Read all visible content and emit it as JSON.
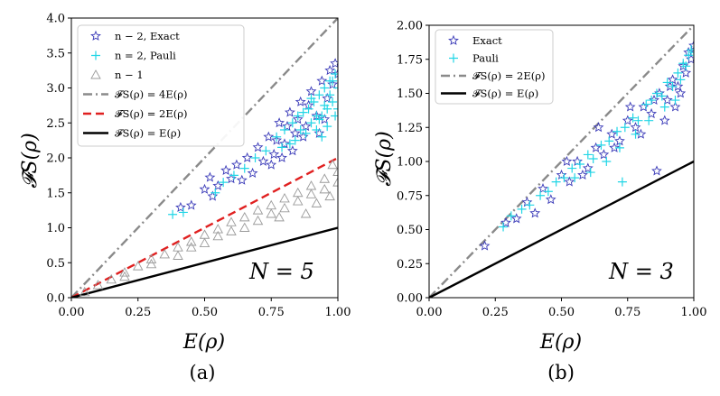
{
  "chart_data": [
    {
      "type": "scatter",
      "panel_label": "(a)",
      "annotation": "N = 5",
      "xlabel": "E(ρ)",
      "ylabel": "𝓕S(ρ)",
      "xlim": [
        0,
        1
      ],
      "ylim": [
        0,
        4
      ],
      "xticks": [
        "0.00",
        "0.25",
        "0.50",
        "0.75",
        "1.00"
      ],
      "yticks": [
        "0.0",
        "0.5",
        "1.0",
        "1.5",
        "2.0",
        "2.5",
        "3.0",
        "3.5",
        "4.0"
      ],
      "legend_position": "top-left",
      "legend": [
        {
          "label": "n − 2, Exact",
          "marker": "star"
        },
        {
          "label": "n = 2, Pauli",
          "marker": "plus"
        },
        {
          "label": "n − 1",
          "marker": "triangle"
        },
        {
          "label": "𝓕S(ρ) = 4E(ρ)",
          "line": "dashdot"
        },
        {
          "label": "𝓕S(ρ) = 2E(ρ)",
          "line": "dashed"
        },
        {
          "label": "𝓕S(ρ) = E(ρ)",
          "line": "solid"
        }
      ],
      "series": [
        {
          "name": "n − 2, Exact",
          "marker": "star",
          "color": "#3a3ab8",
          "points": [
            [
              0.41,
              1.29
            ],
            [
              0.45,
              1.32
            ],
            [
              0.5,
              1.55
            ],
            [
              0.52,
              1.72
            ],
            [
              0.53,
              1.45
            ],
            [
              0.55,
              1.6
            ],
            [
              0.58,
              1.82
            ],
            [
              0.6,
              1.7
            ],
            [
              0.62,
              1.9
            ],
            [
              0.64,
              1.68
            ],
            [
              0.66,
              2.0
            ],
            [
              0.68,
              1.78
            ],
            [
              0.7,
              2.15
            ],
            [
              0.72,
              1.95
            ],
            [
              0.74,
              2.3
            ],
            [
              0.76,
              2.05
            ],
            [
              0.78,
              2.5
            ],
            [
              0.8,
              2.2
            ],
            [
              0.82,
              2.65
            ],
            [
              0.84,
              2.35
            ],
            [
              0.86,
              2.8
            ],
            [
              0.88,
              2.45
            ],
            [
              0.9,
              2.95
            ],
            [
              0.92,
              2.6
            ],
            [
              0.94,
              3.1
            ],
            [
              0.96,
              2.85
            ],
            [
              0.97,
              3.25
            ],
            [
              0.98,
              3.05
            ],
            [
              0.99,
              3.35
            ],
            [
              1.0,
              3.2
            ],
            [
              0.95,
              2.55
            ],
            [
              0.93,
              2.35
            ],
            [
              0.89,
              2.75
            ],
            [
              0.87,
              2.3
            ],
            [
              0.85,
              2.55
            ],
            [
              0.83,
              2.1
            ],
            [
              0.81,
              2.45
            ],
            [
              0.79,
              2.0
            ],
            [
              0.77,
              2.25
            ],
            [
              0.75,
              1.9
            ]
          ]
        },
        {
          "name": "n = 2, Pauli",
          "marker": "plus",
          "color": "#22d6e6",
          "points": [
            [
              0.38,
              1.19
            ],
            [
              0.42,
              1.22
            ],
            [
              0.54,
              1.5
            ],
            [
              0.57,
              1.65
            ],
            [
              0.61,
              1.75
            ],
            [
              0.65,
              1.85
            ],
            [
              0.69,
              2.0
            ],
            [
              0.73,
              2.1
            ],
            [
              0.77,
              2.3
            ],
            [
              0.8,
              2.4
            ],
            [
              0.83,
              2.5
            ],
            [
              0.85,
              2.6
            ],
            [
              0.87,
              2.65
            ],
            [
              0.89,
              2.7
            ],
            [
              0.9,
              2.5
            ],
            [
              0.91,
              2.8
            ],
            [
              0.92,
              2.4
            ],
            [
              0.93,
              2.9
            ],
            [
              0.94,
              2.6
            ],
            [
              0.95,
              3.0
            ],
            [
              0.96,
              2.7
            ],
            [
              0.97,
              3.1
            ],
            [
              0.98,
              2.8
            ],
            [
              0.99,
              3.2
            ],
            [
              1.0,
              3.0
            ],
            [
              0.88,
              2.35
            ],
            [
              0.86,
              2.4
            ],
            [
              0.84,
              2.25
            ],
            [
              0.82,
              2.2
            ],
            [
              0.79,
              2.15
            ],
            [
              0.96,
              2.45
            ],
            [
              0.94,
              2.3
            ],
            [
              0.92,
              2.6
            ],
            [
              0.9,
              2.85
            ],
            [
              0.95,
              2.75
            ],
            [
              0.97,
              2.9
            ],
            [
              0.99,
              2.6
            ],
            [
              1.0,
              2.7
            ],
            [
              0.98,
              3.1
            ],
            [
              0.93,
              2.55
            ]
          ]
        },
        {
          "name": "n − 1",
          "marker": "triangle",
          "color": "#9a9a9a",
          "points": [
            [
              0.05,
              0.08
            ],
            [
              0.1,
              0.18
            ],
            [
              0.15,
              0.26
            ],
            [
              0.2,
              0.36
            ],
            [
              0.25,
              0.45
            ],
            [
              0.3,
              0.55
            ],
            [
              0.35,
              0.62
            ],
            [
              0.4,
              0.72
            ],
            [
              0.45,
              0.8
            ],
            [
              0.5,
              0.9
            ],
            [
              0.55,
              0.98
            ],
            [
              0.6,
              1.08
            ],
            [
              0.65,
              1.15
            ],
            [
              0.7,
              1.25
            ],
            [
              0.75,
              1.32
            ],
            [
              0.8,
              1.42
            ],
            [
              0.85,
              1.5
            ],
            [
              0.9,
              1.6
            ],
            [
              0.95,
              1.7
            ],
            [
              1.0,
              1.8
            ],
            [
              0.4,
              0.6
            ],
            [
              0.5,
              0.78
            ],
            [
              0.6,
              0.95
            ],
            [
              0.65,
              1.0
            ],
            [
              0.7,
              1.1
            ],
            [
              0.75,
              1.2
            ],
            [
              0.8,
              1.28
            ],
            [
              0.85,
              1.38
            ],
            [
              0.9,
              1.48
            ],
            [
              0.95,
              1.55
            ],
            [
              1.0,
              1.65
            ],
            [
              0.88,
              1.2
            ],
            [
              0.92,
              1.35
            ],
            [
              0.97,
              1.45
            ],
            [
              0.3,
              0.48
            ],
            [
              0.2,
              0.3
            ],
            [
              0.55,
              0.88
            ],
            [
              0.45,
              0.72
            ],
            [
              0.78,
              1.15
            ],
            [
              0.98,
              1.9
            ]
          ]
        }
      ],
      "lines": [
        {
          "name": "𝓕S(ρ) = 4E(ρ)",
          "slope": 4,
          "style": "dashdot",
          "color": "#8a8a8a"
        },
        {
          "name": "𝓕S(ρ) = 2E(ρ)",
          "slope": 2,
          "style": "dashed",
          "color": "#e02020"
        },
        {
          "name": "𝓕S(ρ) = E(ρ)",
          "slope": 1,
          "style": "solid",
          "color": "#000000"
        }
      ]
    },
    {
      "type": "scatter",
      "panel_label": "(b)",
      "annotation": "N = 3",
      "xlabel": "E(ρ)",
      "ylabel": "𝓕S(ρ)",
      "xlim": [
        0,
        1
      ],
      "ylim": [
        0,
        2
      ],
      "xticks": [
        "0.00",
        "0.25",
        "0.50",
        "0.75",
        "1.00"
      ],
      "yticks": [
        "0.00",
        "0.25",
        "0.50",
        "0.75",
        "1.00",
        "1.25",
        "1.50",
        "1.75",
        "2.00"
      ],
      "legend_position": "top-left",
      "legend": [
        {
          "label": "Exact",
          "marker": "star"
        },
        {
          "label": "Pauli",
          "marker": "plus"
        },
        {
          "label": "𝓕S(ρ) = 2E(ρ)",
          "line": "dashdot"
        },
        {
          "label": "𝓕S(ρ) = E(ρ)",
          "line": "solid"
        }
      ],
      "series": [
        {
          "name": "Exact",
          "marker": "star",
          "color": "#3a3ab8",
          "points": [
            [
              0.21,
              0.38
            ],
            [
              0.29,
              0.55
            ],
            [
              0.33,
              0.58
            ],
            [
              0.37,
              0.7
            ],
            [
              0.4,
              0.62
            ],
            [
              0.43,
              0.8
            ],
            [
              0.46,
              0.72
            ],
            [
              0.5,
              0.9
            ],
            [
              0.53,
              0.85
            ],
            [
              0.56,
              1.0
            ],
            [
              0.6,
              0.95
            ],
            [
              0.63,
              1.1
            ],
            [
              0.66,
              1.05
            ],
            [
              0.69,
              1.2
            ],
            [
              0.72,
              1.15
            ],
            [
              0.75,
              1.3
            ],
            [
              0.78,
              1.25
            ],
            [
              0.81,
              1.4
            ],
            [
              0.84,
              1.35
            ],
            [
              0.86,
              0.93
            ],
            [
              0.87,
              1.5
            ],
            [
              0.9,
              1.45
            ],
            [
              0.92,
              1.6
            ],
            [
              0.94,
              1.55
            ],
            [
              0.96,
              1.7
            ],
            [
              0.97,
              1.65
            ],
            [
              0.98,
              1.8
            ],
            [
              0.99,
              1.75
            ],
            [
              1.0,
              1.85
            ],
            [
              0.95,
              1.5
            ],
            [
              0.93,
              1.4
            ],
            [
              0.91,
              1.55
            ],
            [
              0.89,
              1.3
            ],
            [
              0.85,
              1.45
            ],
            [
              0.8,
              1.2
            ],
            [
              0.76,
              1.4
            ],
            [
              0.7,
              1.1
            ],
            [
              0.64,
              1.25
            ],
            [
              0.58,
              0.9
            ],
            [
              0.52,
              1.0
            ]
          ]
        },
        {
          "name": "Pauli",
          "marker": "plus",
          "color": "#22d6e6",
          "points": [
            [
              0.28,
              0.52
            ],
            [
              0.31,
              0.6
            ],
            [
              0.35,
              0.65
            ],
            [
              0.38,
              0.68
            ],
            [
              0.42,
              0.75
            ],
            [
              0.45,
              0.78
            ],
            [
              0.48,
              0.85
            ],
            [
              0.51,
              0.88
            ],
            [
              0.54,
              0.95
            ],
            [
              0.57,
              0.98
            ],
            [
              0.6,
              1.05
            ],
            [
              0.62,
              1.02
            ],
            [
              0.65,
              1.12
            ],
            [
              0.68,
              1.15
            ],
            [
              0.71,
              1.22
            ],
            [
              0.73,
              0.85
            ],
            [
              0.74,
              1.25
            ],
            [
              0.77,
              1.32
            ],
            [
              0.79,
              1.3
            ],
            [
              0.82,
              1.42
            ],
            [
              0.84,
              1.45
            ],
            [
              0.86,
              1.5
            ],
            [
              0.88,
              1.48
            ],
            [
              0.9,
              1.58
            ],
            [
              0.92,
              1.55
            ],
            [
              0.94,
              1.65
            ],
            [
              0.95,
              1.6
            ],
            [
              0.96,
              1.72
            ],
            [
              0.97,
              1.7
            ],
            [
              0.98,
              1.78
            ],
            [
              0.99,
              1.82
            ],
            [
              1.0,
              1.8
            ],
            [
              0.93,
              1.45
            ],
            [
              0.89,
              1.4
            ],
            [
              0.83,
              1.3
            ],
            [
              0.78,
              1.2
            ],
            [
              0.72,
              1.1
            ],
            [
              0.67,
              1.0
            ],
            [
              0.61,
              0.92
            ],
            [
              0.55,
              0.88
            ]
          ]
        }
      ],
      "lines": [
        {
          "name": "𝓕S(ρ) = 2E(ρ)",
          "slope": 2,
          "style": "dashdot",
          "color": "#8a8a8a"
        },
        {
          "name": "𝓕S(ρ) = E(ρ)",
          "slope": 1,
          "style": "solid",
          "color": "#000000"
        }
      ]
    }
  ]
}
